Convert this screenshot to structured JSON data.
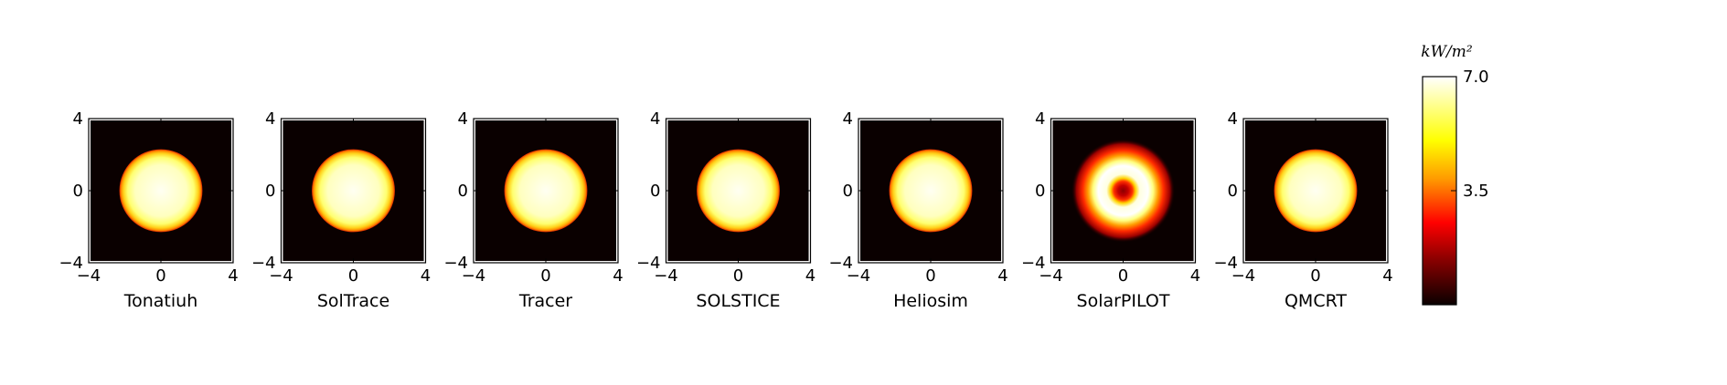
{
  "chart_data": {
    "type": "heatmap",
    "colormap": "hot",
    "xlim": [
      -4,
      4
    ],
    "ylim": [
      -4,
      4
    ],
    "x_ticks": [
      "−4",
      "0",
      "4"
    ],
    "y_ticks": [
      "4",
      "0",
      "−4"
    ],
    "panels": [
      {
        "label": "Tonatiuh",
        "pattern": "disk",
        "disk_radius": 2.3
      },
      {
        "label": "SolTrace",
        "pattern": "disk",
        "disk_radius": 2.3
      },
      {
        "label": "Tracer",
        "pattern": "disk",
        "disk_radius": 2.3
      },
      {
        "label": "SOLSTICE",
        "pattern": "disk",
        "disk_radius": 2.3
      },
      {
        "label": "Heliosim",
        "pattern": "disk",
        "disk_radius": 2.3
      },
      {
        "label": "SolarPILOT",
        "pattern": "ring",
        "disk_radius": 2.3
      },
      {
        "label": "QMCRT",
        "pattern": "disk",
        "disk_radius": 2.3
      }
    ],
    "colorbar": {
      "title": "kW/m²",
      "min": 0,
      "max": 7.0,
      "ticks": [
        "7.0",
        "3.5"
      ]
    }
  }
}
